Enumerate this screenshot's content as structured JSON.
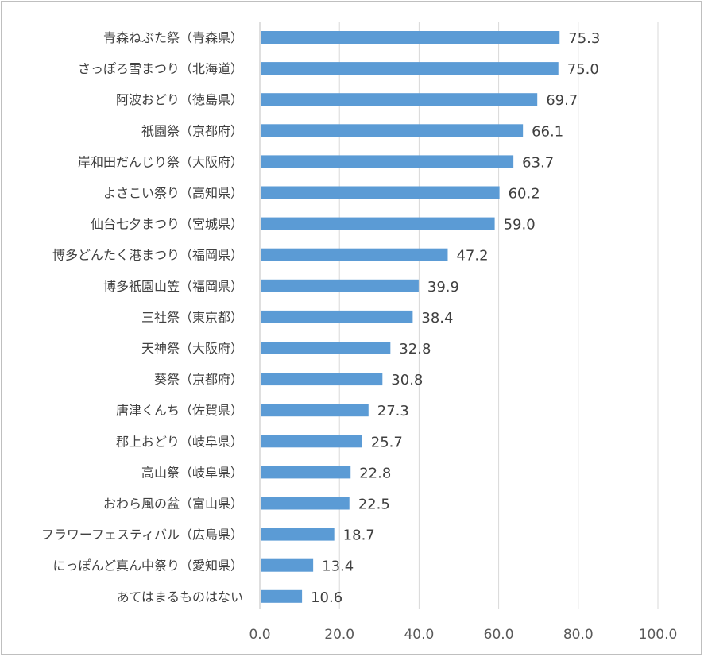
{
  "chart_data": {
    "type": "bar",
    "orientation": "horizontal",
    "categories": [
      "青森ねぶた祭（青森県）",
      "さっぽろ雪まつり（北海道）",
      "阿波おどり（徳島県）",
      "祇園祭（京都府）",
      "岸和田だんじり祭（大阪府）",
      "よさこい祭り（高知県）",
      "仙台七夕まつり（宮城県）",
      "博多どんたく港まつり（福岡県）",
      "博多祇園山笠（福岡県）",
      "三社祭（東京都）",
      "天神祭（大阪府）",
      "葵祭（京都府）",
      "唐津くんち（佐賀県）",
      "郡上おどり（岐阜県）",
      "高山祭（岐阜県）",
      "おわら風の盆（富山県）",
      "フラワーフェスティバル（広島県）",
      "にっぽんど真ん中祭り（愛知県）",
      "あてはまるものはない"
    ],
    "values": [
      75.3,
      75.0,
      69.7,
      66.1,
      63.7,
      60.2,
      59.0,
      47.2,
      39.9,
      38.4,
      32.8,
      30.8,
      27.3,
      25.7,
      22.8,
      22.5,
      18.7,
      13.4,
      10.6
    ],
    "value_labels": [
      "75.3",
      "75.0",
      "69.7",
      "66.1",
      "63.7",
      "60.2",
      "59.0",
      "47.2",
      "39.9",
      "38.4",
      "32.8",
      "30.8",
      "27.3",
      "25.7",
      "22.8",
      "22.5",
      "18.7",
      "13.4",
      "10.6"
    ],
    "xlim": [
      0,
      100
    ],
    "xticks": [
      0,
      20,
      40,
      60,
      80,
      100
    ],
    "xtick_labels": [
      "0.0",
      "20.0",
      "40.0",
      "60.0",
      "80.0",
      "100.0"
    ],
    "grid": true,
    "legend": "none",
    "colors": {
      "bar": "#5b9bd5",
      "grid": "#d9d9d9",
      "axis": "#bfbfbf",
      "text": "#404040"
    }
  }
}
